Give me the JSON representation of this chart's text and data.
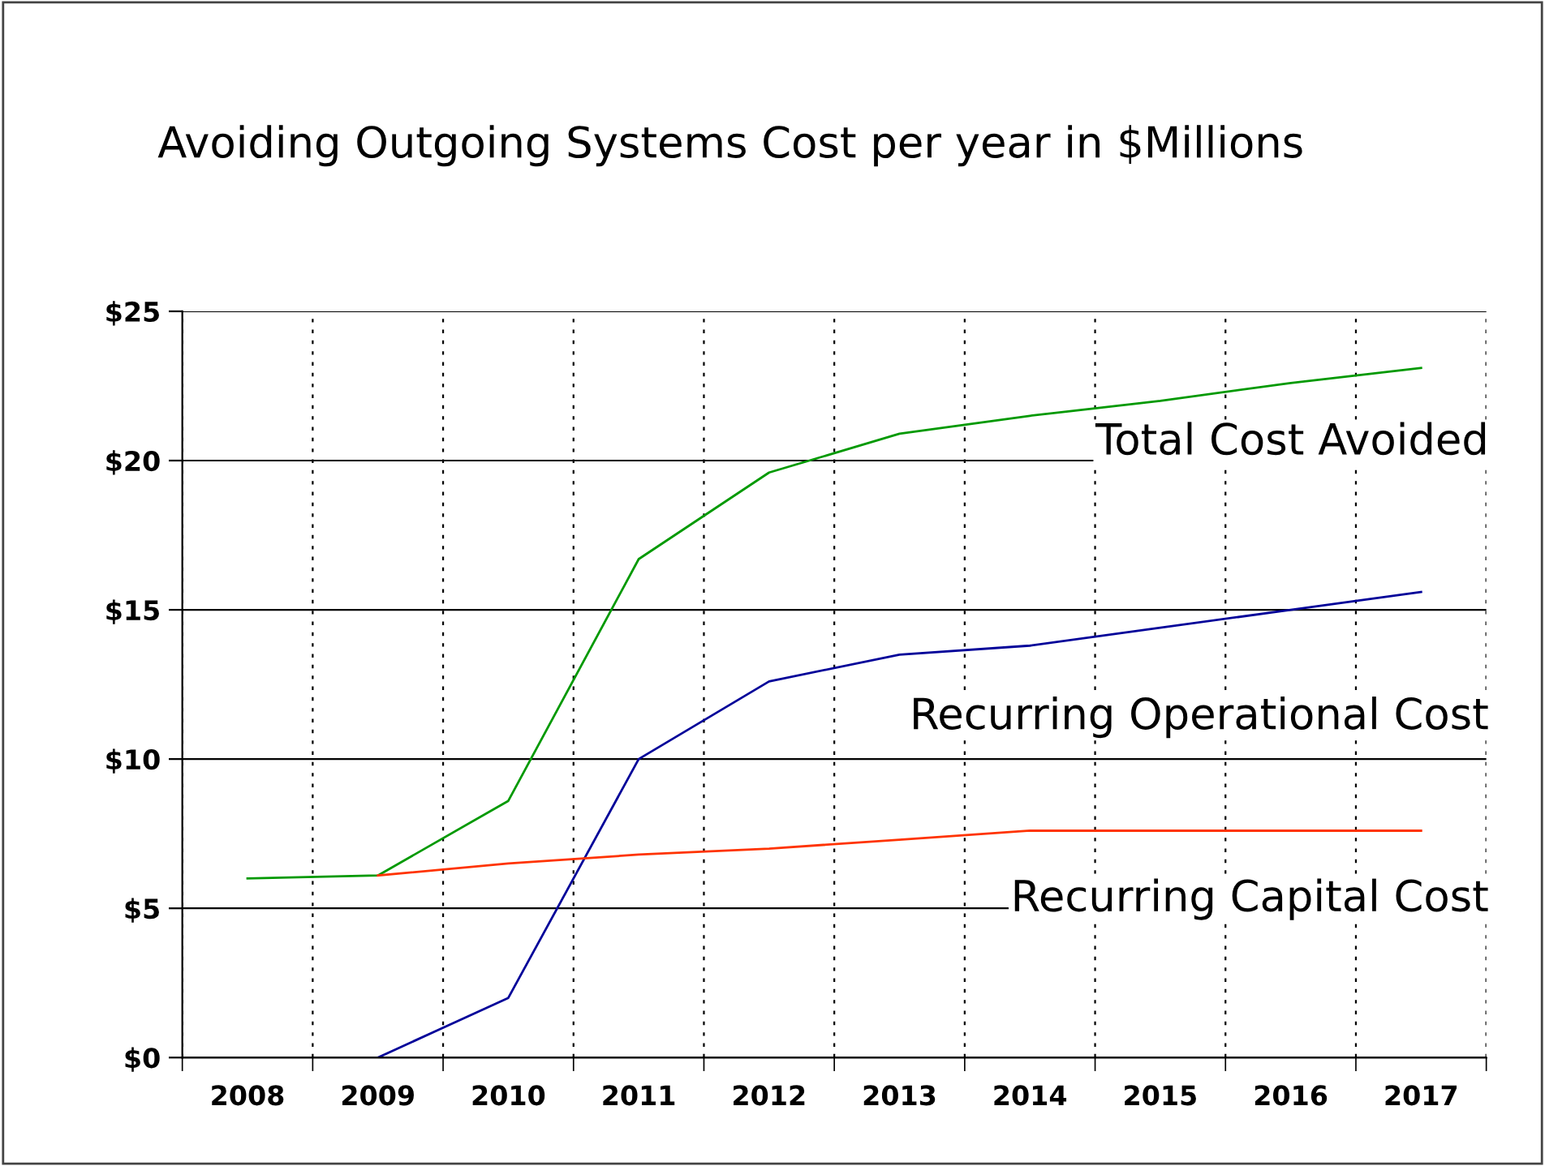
{
  "chart_data": {
    "type": "line",
    "title": "Avoiding Outgoing Systems Cost per year in $Millions",
    "categories": [
      "2008",
      "2009",
      "2010",
      "2011",
      "2012",
      "2013",
      "2014",
      "2015",
      "2016",
      "2017"
    ],
    "series": [
      {
        "name": "Total Cost Avoided",
        "color": "#009900",
        "values": [
          6.0,
          6.1,
          8.6,
          16.7,
          19.6,
          20.9,
          21.5,
          22.0,
          22.6,
          23.1
        ]
      },
      {
        "name": "Recurring Operational Cost",
        "color": "#000099",
        "values": [
          null,
          0.0,
          2.0,
          10.0,
          12.6,
          13.5,
          13.8,
          14.4,
          15.0,
          15.6
        ]
      },
      {
        "name": "Recurring Capital Cost",
        "color": "#ff3300",
        "values": [
          null,
          6.1,
          6.5,
          6.8,
          7.0,
          7.3,
          7.6,
          7.6,
          7.6,
          7.6
        ]
      }
    ],
    "ylim": [
      0,
      25
    ],
    "yticks": [
      {
        "value": 0,
        "label": "$0"
      },
      {
        "value": 5,
        "label": "$5"
      },
      {
        "value": 10,
        "label": "$10"
      },
      {
        "value": 15,
        "label": "$15"
      },
      {
        "value": 20,
        "label": "$20"
      },
      {
        "value": 25,
        "label": "$25"
      }
    ],
    "grid": true,
    "legend": false,
    "marker": "none",
    "line_style": "solid"
  }
}
